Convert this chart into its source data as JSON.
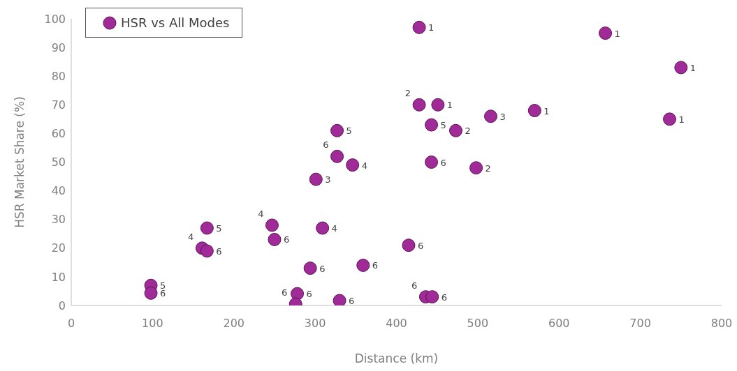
{
  "chart_data": {
    "type": "scatter",
    "xlabel": "Distance (km)",
    "ylabel": "HSR Market Share (%)",
    "xlim": [
      0,
      800
    ],
    "xticks": [
      0,
      100,
      200,
      300,
      400,
      500,
      600,
      700,
      800
    ],
    "ylim": [
      0,
      100
    ],
    "yticks": [
      0,
      10,
      20,
      30,
      40,
      50,
      60,
      70,
      80,
      90,
      100
    ],
    "grid": false,
    "legend": "top left",
    "marker": "circle",
    "series": [
      {
        "name": "HSR vs All Modes",
        "color": "#a02a98",
        "x": [
          428,
          657,
          750,
          428,
          451,
          516,
          570,
          736,
          443,
          473,
          443,
          498,
          415,
          436,
          444,
          327,
          327,
          346,
          301,
          167,
          247,
          250,
          309,
          161,
          167,
          294,
          359,
          98,
          98,
          278,
          276,
          330
        ],
        "values": [
          97,
          95,
          83,
          70,
          70,
          66,
          68,
          65,
          63,
          61,
          50,
          48,
          21,
          3,
          3,
          61,
          52,
          49,
          44,
          27,
          28,
          23,
          27,
          20,
          19,
          13,
          14,
          7,
          4.3,
          4.1,
          0.5,
          1.7
        ]
      }
    ],
    "annotations": [
      {
        "text": "1",
        "x": 428,
        "y": 97
      },
      {
        "text": "1",
        "x": 657,
        "y": 95
      },
      {
        "text": "1",
        "x": 750,
        "y": 83
      },
      {
        "text": "2",
        "x": 428,
        "y": 70
      },
      {
        "text": "1",
        "x": 451,
        "y": 70
      },
      {
        "text": "3",
        "x": 516,
        "y": 66
      },
      {
        "text": "1",
        "x": 570,
        "y": 68
      },
      {
        "text": "1",
        "x": 736,
        "y": 65
      },
      {
        "text": "5",
        "x": 443,
        "y": 63
      },
      {
        "text": "2",
        "x": 473,
        "y": 61
      },
      {
        "text": "6",
        "x": 443,
        "y": 50
      },
      {
        "text": "2",
        "x": 498,
        "y": 48
      },
      {
        "text": "6",
        "x": 415,
        "y": 21
      },
      {
        "text": "6",
        "x": 436,
        "y": 3
      },
      {
        "text": "6",
        "x": 444,
        "y": 3
      },
      {
        "text": "5",
        "x": 327,
        "y": 61
      },
      {
        "text": "6",
        "x": 327,
        "y": 52
      },
      {
        "text": "4",
        "x": 346,
        "y": 49
      },
      {
        "text": "3",
        "x": 301,
        "y": 44
      },
      {
        "text": "5",
        "x": 167,
        "y": 27
      },
      {
        "text": "4",
        "x": 247,
        "y": 28
      },
      {
        "text": "6",
        "x": 250,
        "y": 23
      },
      {
        "text": "4",
        "x": 309,
        "y": 27
      },
      {
        "text": "4",
        "x": 161,
        "y": 20
      },
      {
        "text": "6",
        "x": 167,
        "y": 19
      },
      {
        "text": "6",
        "x": 294,
        "y": 13
      },
      {
        "text": "6",
        "x": 359,
        "y": 14
      },
      {
        "text": "5",
        "x": 98,
        "y": 7
      },
      {
        "text": "6",
        "x": 98,
        "y": 4.3
      },
      {
        "text": "6",
        "x": 278,
        "y": 4.1
      },
      {
        "text": "6",
        "x": 276,
        "y": 0.5
      },
      {
        "text": "6",
        "x": 330,
        "y": 1.7
      }
    ]
  }
}
